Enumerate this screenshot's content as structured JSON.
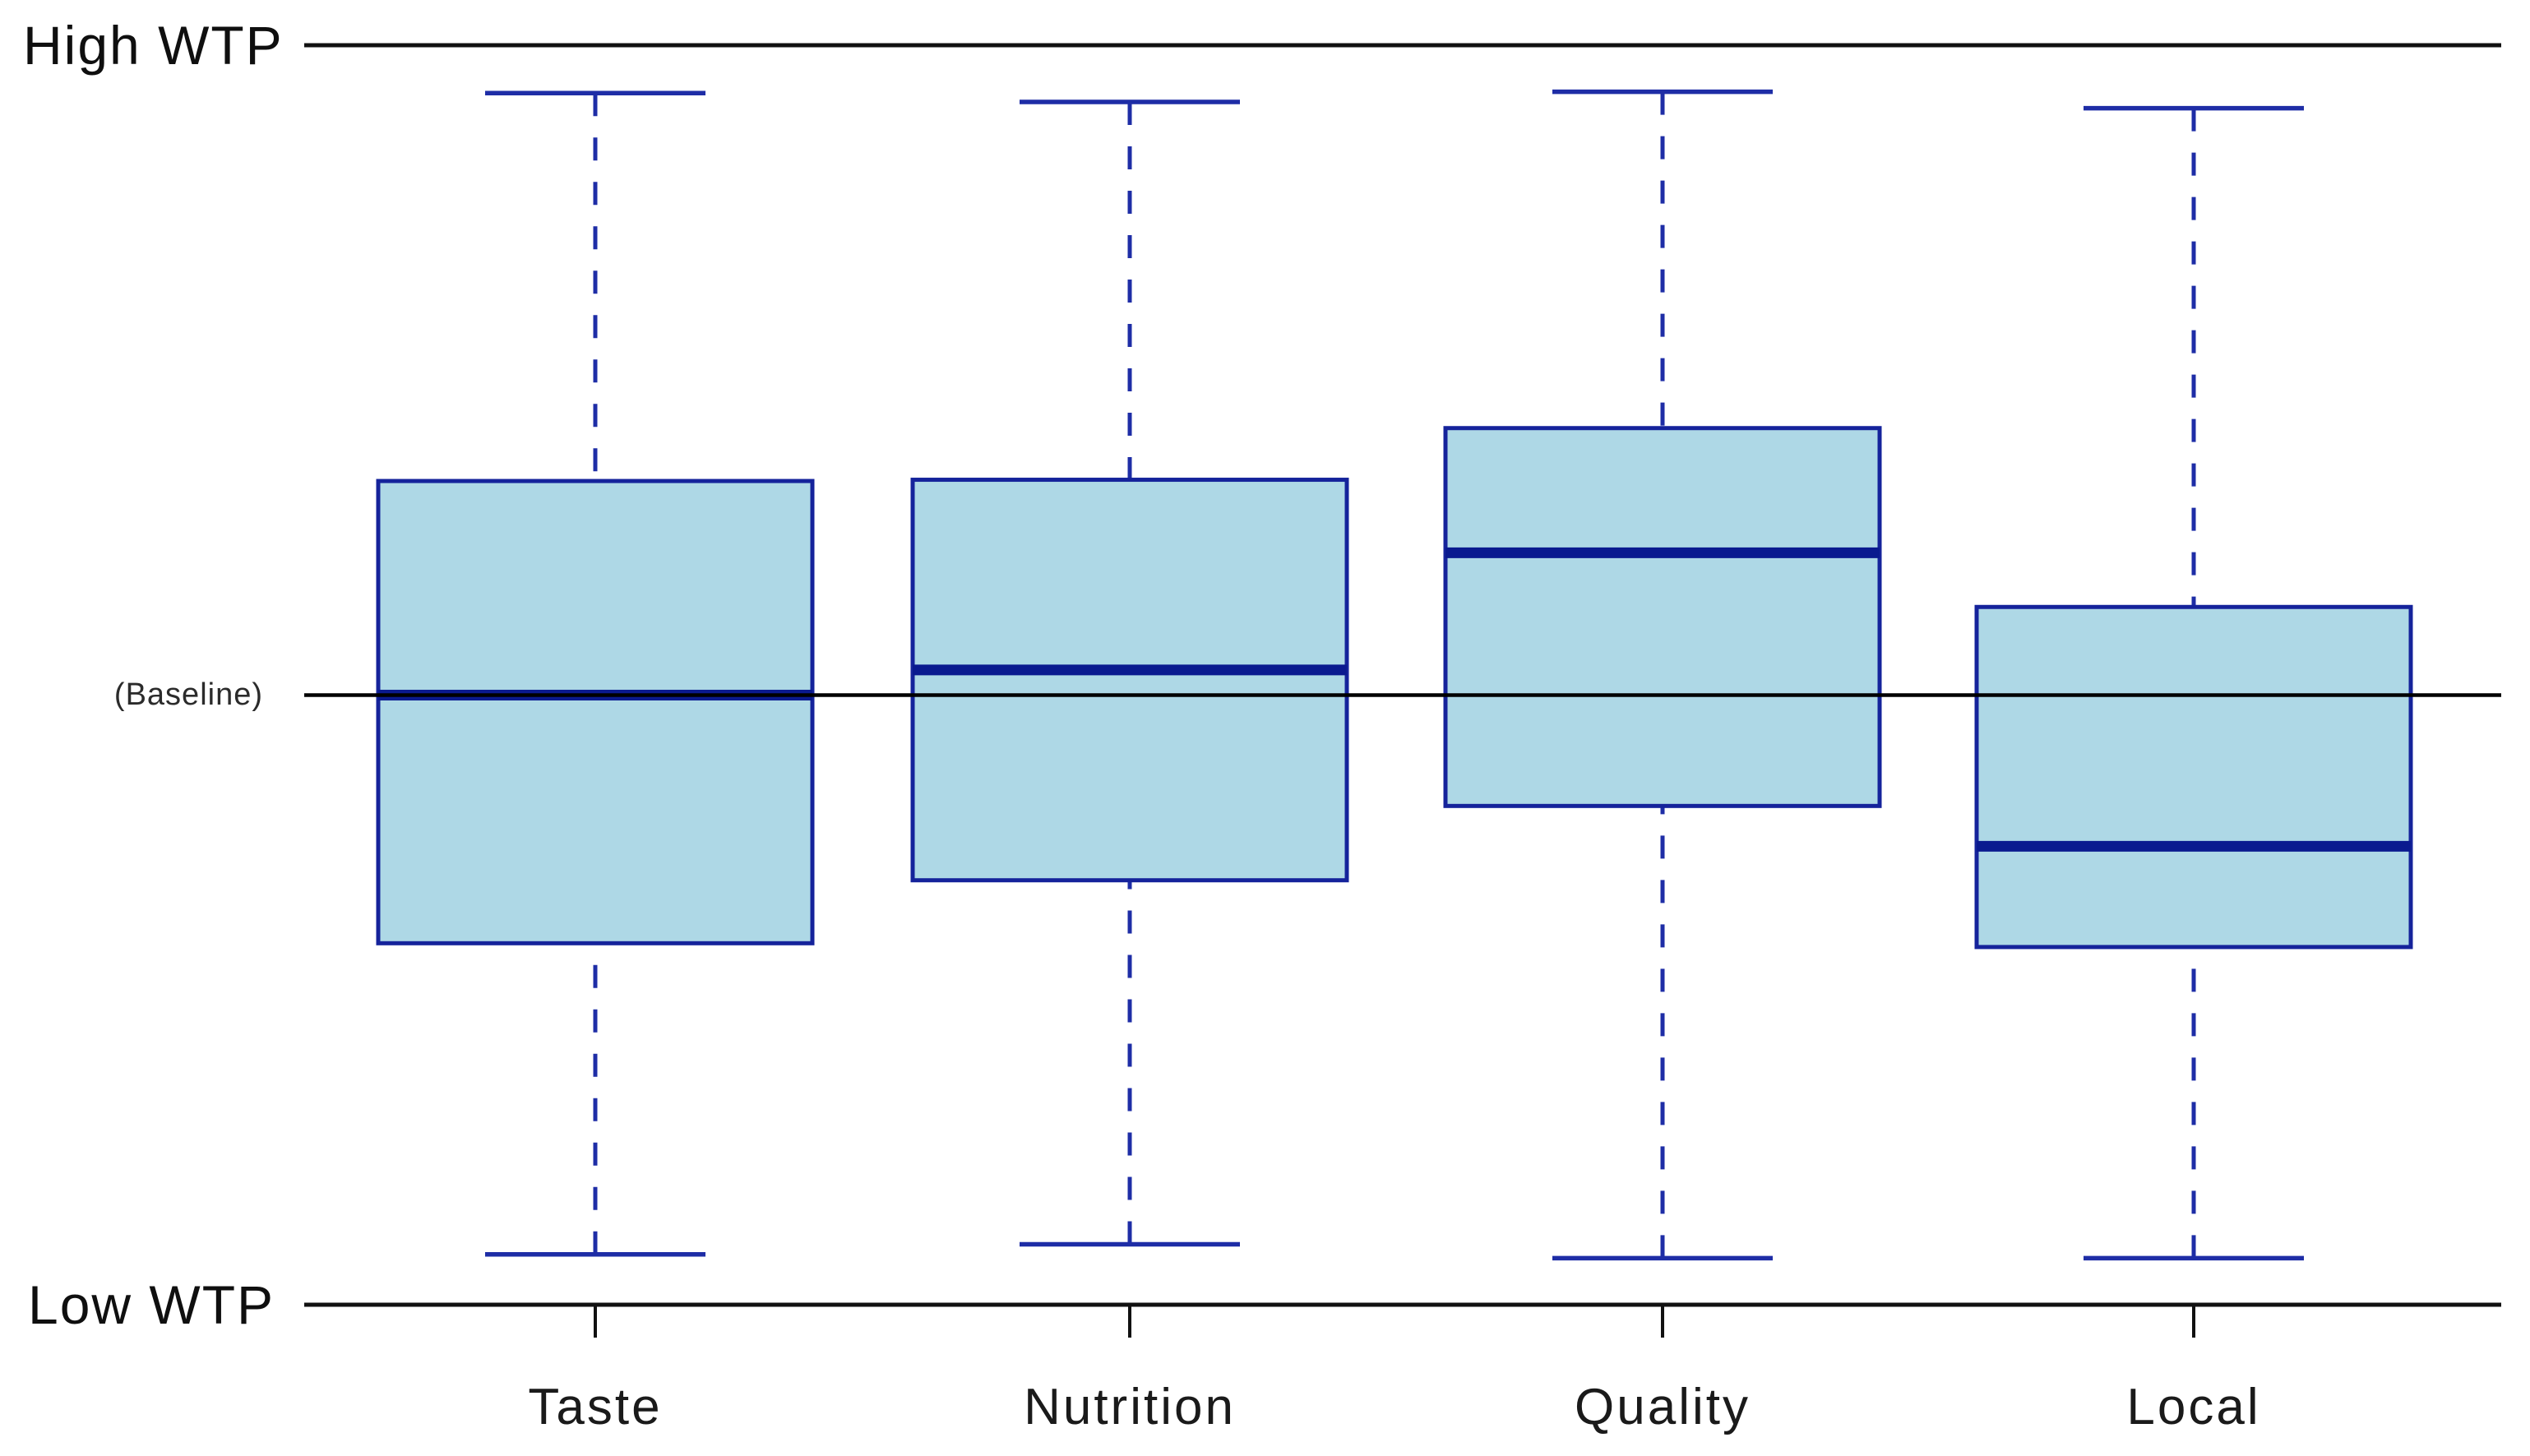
{
  "chart_data": {
    "type": "box",
    "orientation": "vertical",
    "categories": [
      "Taste",
      "Nutrition",
      "Quality",
      "Local"
    ],
    "axis_labels": {
      "top": "High WTP",
      "bottom": "Low WTP"
    },
    "baseline": {
      "label": "(Baseline)",
      "value": 48.4
    },
    "ylim": [
      0,
      100
    ],
    "y_scale_note": "qualitative willingness-to-pay scale: 0 = Low WTP axis line, 100 = High WTP axis line",
    "grid": false,
    "legend": false,
    "series": [
      {
        "name": "Taste",
        "whisker_low": 4.0,
        "q1": 28.7,
        "median": 48.4,
        "q3": 65.4,
        "whisker_high": 96.2
      },
      {
        "name": "Nutrition",
        "whisker_low": 4.8,
        "q1": 33.7,
        "median": 50.4,
        "q3": 65.5,
        "whisker_high": 95.5
      },
      {
        "name": "Quality",
        "whisker_low": 3.7,
        "q1": 39.6,
        "median": 59.7,
        "q3": 69.6,
        "whisker_high": 96.3
      },
      {
        "name": "Local",
        "whisker_low": 3.7,
        "q1": 28.4,
        "median": 36.4,
        "q3": 55.4,
        "whisker_high": 95.0
      }
    ],
    "colors": {
      "box_fill": "#aed8e6",
      "box_border": "#15239b",
      "median_line": "#0a1a8f",
      "whisker_line": "#1e2da6",
      "baseline_line": "#000000",
      "axis_line": "#111111",
      "text": "#0f0f0f"
    }
  }
}
